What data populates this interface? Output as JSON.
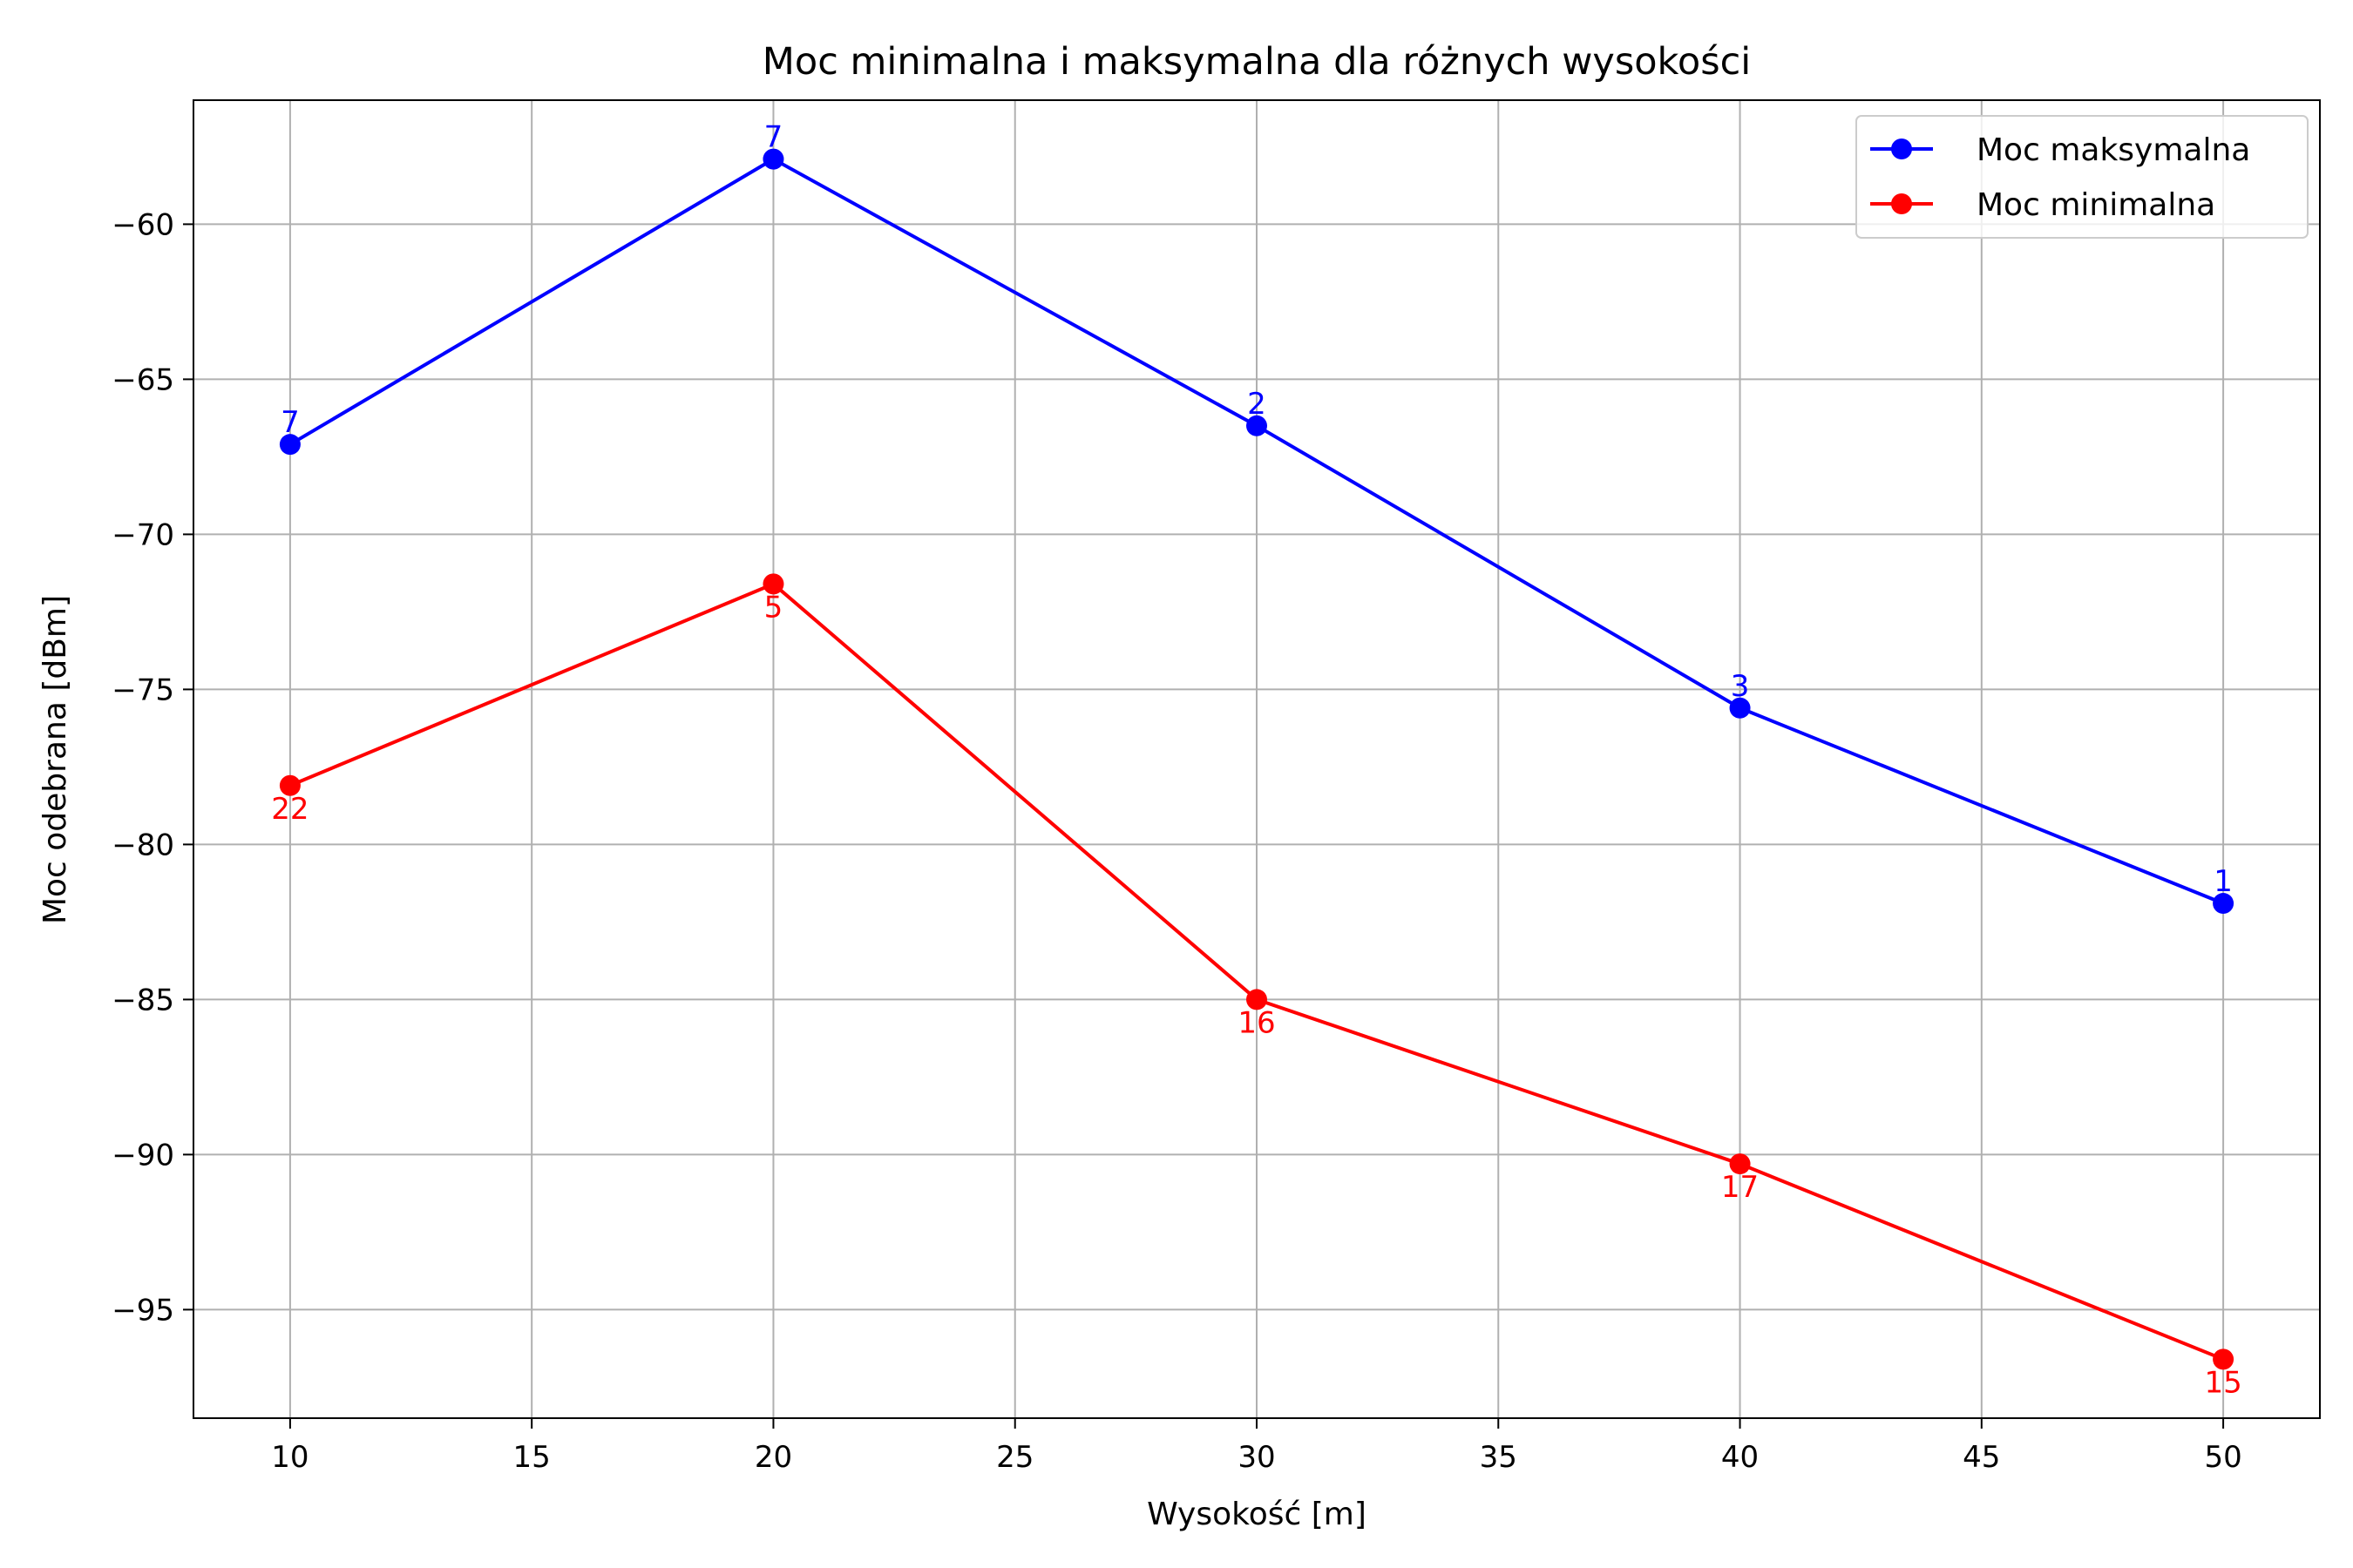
{
  "chart_data": {
    "type": "line",
    "title": "Moc minimalna i maksymalna dla różnych wysokości",
    "xlabel": "Wysokość [m]",
    "ylabel": "Moc odebrana [dBm]",
    "xlim": [
      8,
      52
    ],
    "ylim": [
      -98.5,
      -56
    ],
    "xticks": [
      10,
      15,
      20,
      25,
      30,
      35,
      40,
      45,
      50
    ],
    "yticks": [
      -95,
      -90,
      -85,
      -80,
      -75,
      -70,
      -65,
      -60
    ],
    "grid": true,
    "legend_position": "top-right",
    "x": [
      10,
      20,
      30,
      40,
      50
    ],
    "series": [
      {
        "name": "Moc maksymalna",
        "color": "#0000ff",
        "values": [
          -67.1,
          -57.9,
          -66.5,
          -75.6,
          -81.9
        ],
        "labels": [
          "7",
          "7",
          "2",
          "3",
          "1"
        ],
        "label_position": "above"
      },
      {
        "name": "Moc minimalna",
        "color": "#ff0000",
        "values": [
          -78.1,
          -71.6,
          -85.0,
          -90.3,
          -96.6
        ],
        "labels": [
          "22",
          "5",
          "16",
          "17",
          "15"
        ],
        "label_position": "below"
      }
    ]
  }
}
